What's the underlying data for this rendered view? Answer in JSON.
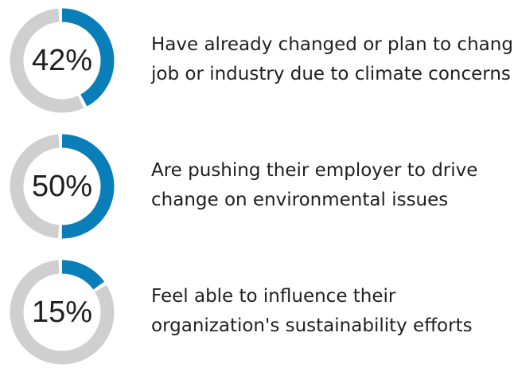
{
  "colors": {
    "accent": "#0a7eb8",
    "track": "#cfcfcf",
    "text": "#1f1f1f",
    "background": "#ffffff"
  },
  "chart_data": {
    "type": "pie",
    "variant": "donut-stat-list",
    "title": "",
    "items": [
      {
        "value": 42,
        "label": "42%",
        "lines": [
          "Have already changed or plan to change",
          "job or industry due to climate concerns"
        ]
      },
      {
        "value": 50,
        "label": "50%",
        "lines": [
          "Are pushing their employer to drive",
          "change on environmental issues"
        ]
      },
      {
        "value": 15,
        "label": "15%",
        "lines": [
          "Feel able to influence their",
          "organization's sustainability efforts"
        ]
      }
    ]
  }
}
